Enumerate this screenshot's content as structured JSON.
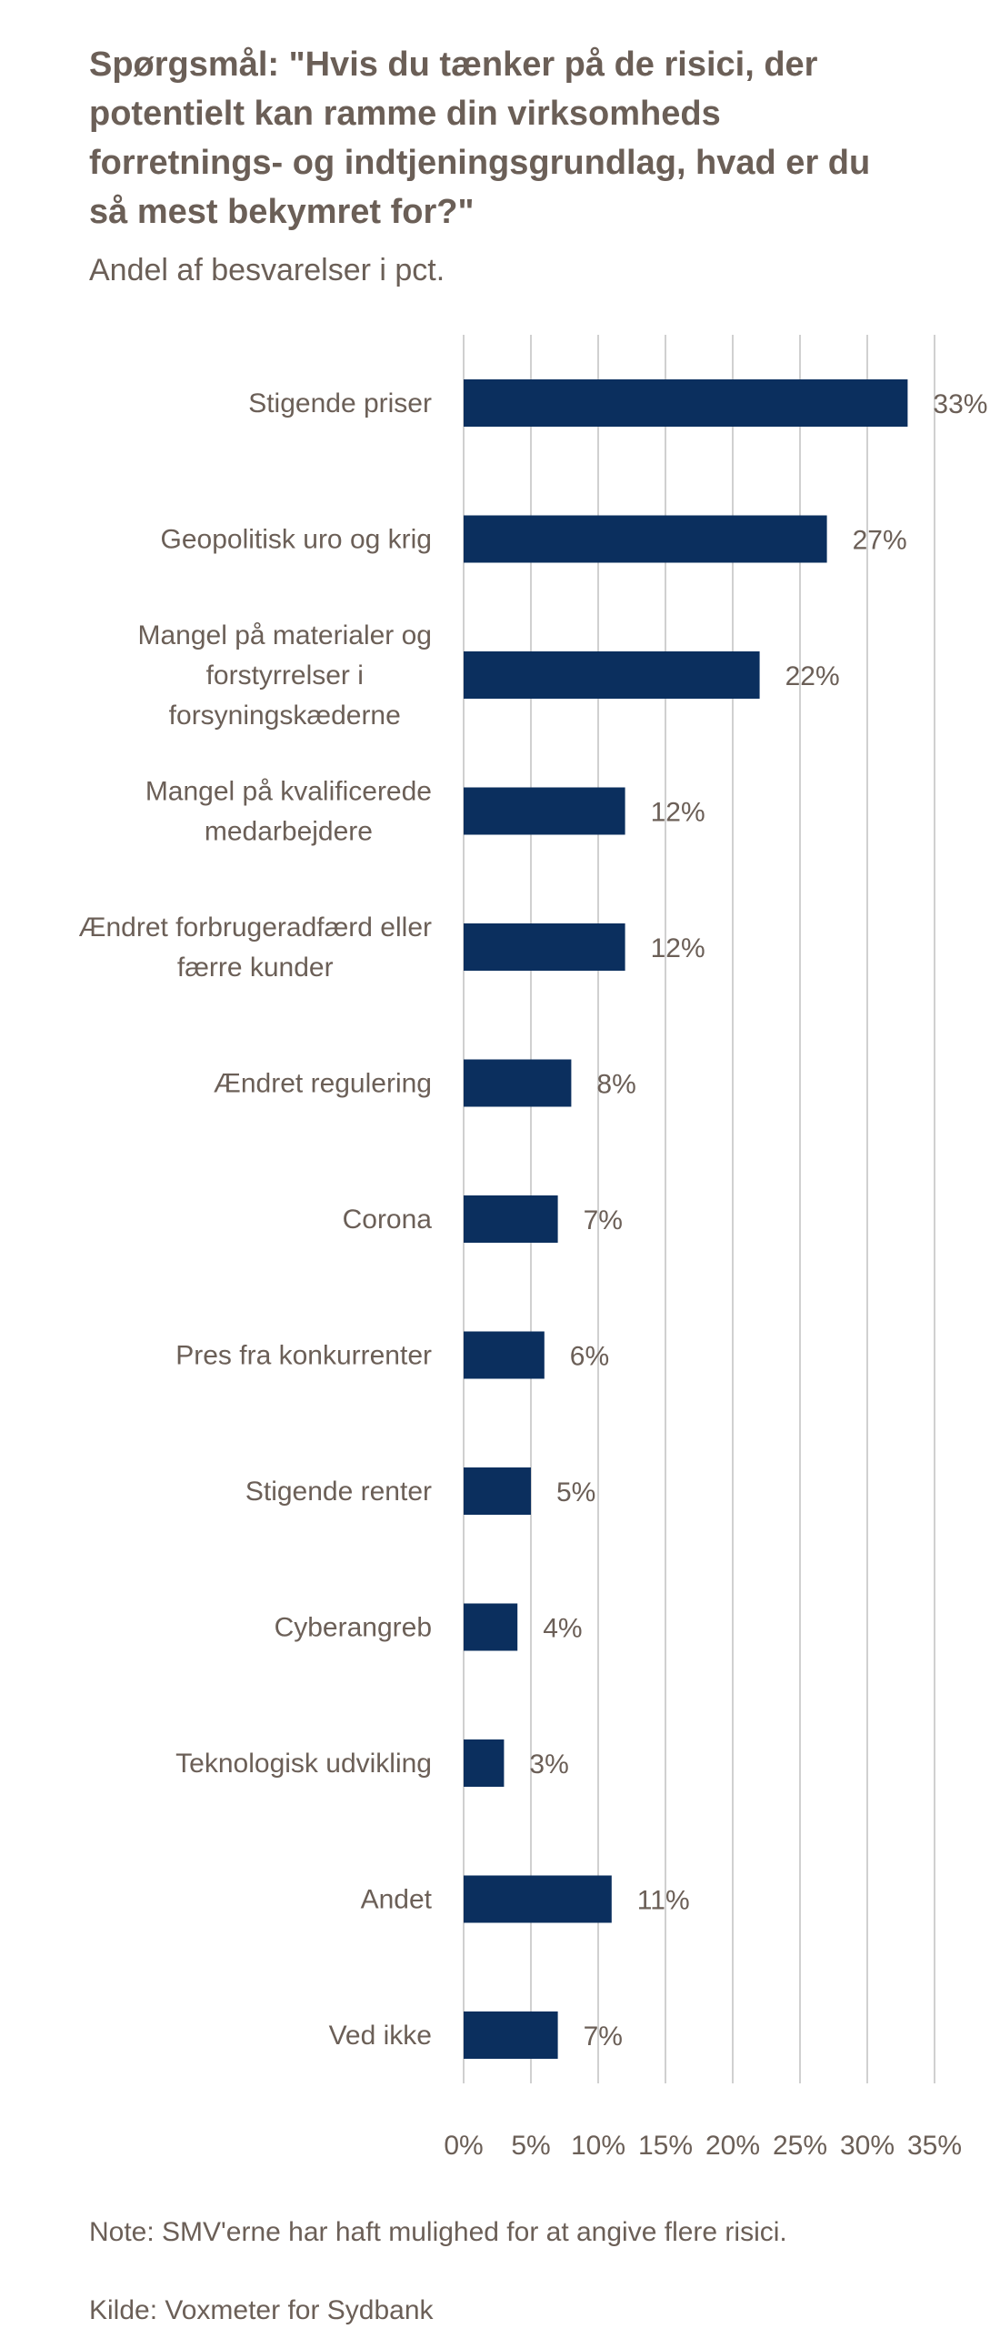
{
  "header": {
    "title": "Spørgsmål: \"Hvis du tænker på de risici, der potentielt kan ramme din virksomheds forretnings- og indtjeningsgrundlag, hvad er du så mest bekymret for?\"",
    "subtitle": "Andel af besvarelser i pct."
  },
  "footer": {
    "note": "Note: SMV'erne har haft mulighed for at angive flere risici.",
    "source": "Kilde: Voxmeter for Sydbank"
  },
  "colors": {
    "bar": "#0b2f5e",
    "gridline": "#d0d0d0",
    "text": "#6b5f57"
  },
  "chart_data": {
    "type": "bar",
    "orientation": "horizontal",
    "categories": [
      [
        "Stigende priser"
      ],
      [
        "Geopolitisk uro og krig"
      ],
      [
        "Mangel på materialer og",
        "forstyrrelser i",
        "forsyningskæderne"
      ],
      [
        "Mangel på kvalificerede",
        "medarbejdere"
      ],
      [
        "Ændret forbrugeradfærd eller",
        "færre kunder"
      ],
      [
        "Ændret regulering"
      ],
      [
        "Corona"
      ],
      [
        "Pres fra konkurrenter"
      ],
      [
        "Stigende renter"
      ],
      [
        "Cyberangreb"
      ],
      [
        "Teknologisk udvikling"
      ],
      [
        "Andet"
      ],
      [
        "Ved ikke"
      ]
    ],
    "values": [
      33,
      27,
      22,
      12,
      12,
      8,
      7,
      6,
      5,
      4,
      3,
      11,
      7
    ],
    "data_labels": [
      "33%",
      "27%",
      "22%",
      "12%",
      "12%",
      "8%",
      "7%",
      "6%",
      "5%",
      "4%",
      "3%",
      "11%",
      "7%"
    ],
    "xlim": [
      0,
      35
    ],
    "x_ticks": [
      0,
      5,
      10,
      15,
      20,
      25,
      30,
      35
    ],
    "x_tick_labels": [
      "0%",
      "5%",
      "10%",
      "15%",
      "20%",
      "25%",
      "30%",
      "35%"
    ],
    "grid": true,
    "legend": "none"
  }
}
